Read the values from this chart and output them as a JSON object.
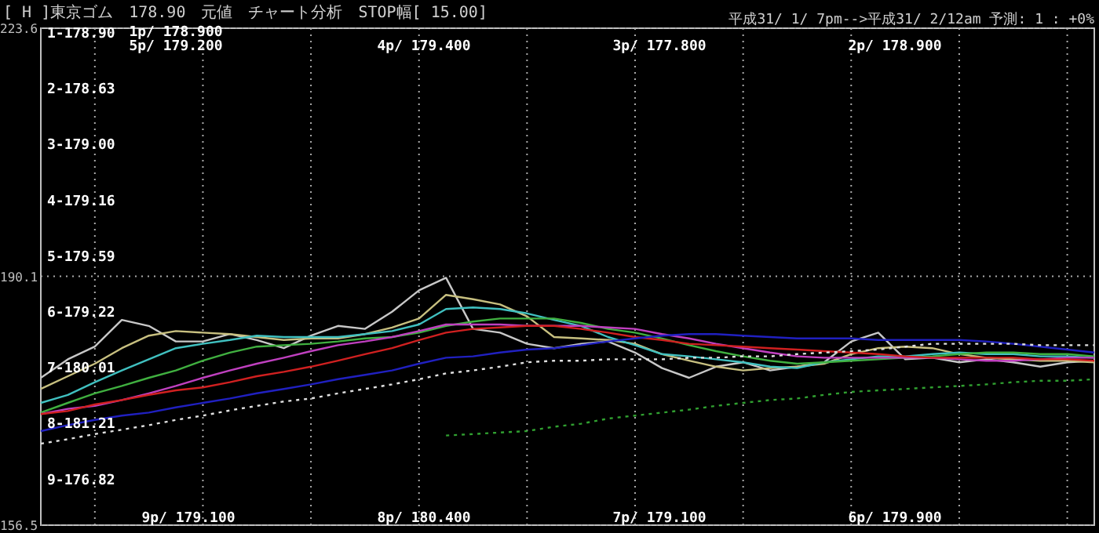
{
  "chart_data": {
    "type": "line",
    "title": "[ H ]東京ゴム　178.90　元値　チャート分析　STOP幅[ 15.00]",
    "subtitle": "平成31/ 1/ 7pm-->平成31/ 2/12am 予測: 1 : +0%",
    "categories": [
      null,
      null,
      null,
      null,
      null,
      null,
      null,
      null,
      null,
      null,
      null,
      null,
      null,
      null,
      null,
      null,
      null,
      null,
      null,
      null,
      null,
      null,
      null,
      null,
      null,
      null,
      null,
      null,
      null,
      null,
      null,
      null,
      null,
      null,
      null,
      null,
      null,
      null,
      null,
      null
    ],
    "ylim": [
      156.5,
      223.6
    ],
    "yticks": [
      156.5,
      190.1,
      223.6
    ],
    "grid": true,
    "marker": "none",
    "series": [
      {
        "color": "#c8c8c8",
        "values": [
          176.4,
          178.9,
          180.6,
          184.2,
          183.4,
          181.3,
          181.3,
          182.3,
          181.5,
          180.4,
          182.1,
          183.4,
          183.0,
          185.3,
          188.2,
          189.9,
          183.0,
          182.5,
          181.0,
          180.4,
          181.0,
          181.3,
          179.8,
          177.7,
          176.4,
          177.9,
          178.5,
          177.4,
          177.9,
          178.5,
          181.3,
          182.5,
          178.9,
          179.1,
          178.5,
          178.9,
          178.5,
          177.9,
          178.5,
          178.7
        ]
      },
      {
        "color": "#c8c080",
        "values": [
          174.9,
          176.6,
          178.3,
          180.4,
          182.1,
          182.7,
          182.5,
          182.3,
          181.9,
          181.5,
          181.7,
          181.7,
          182.3,
          183.2,
          184.4,
          187.6,
          187.0,
          186.3,
          184.7,
          181.9,
          181.7,
          181.5,
          181.0,
          179.6,
          178.7,
          177.9,
          177.4,
          177.7,
          177.9,
          178.3,
          179.6,
          180.4,
          180.6,
          180.4,
          179.6,
          179.1,
          178.9,
          178.7,
          178.7,
          178.5
        ]
      },
      {
        "color": "#40c0c0",
        "values": [
          173.0,
          174.1,
          175.8,
          177.4,
          178.9,
          180.4,
          181.0,
          181.5,
          182.1,
          181.9,
          181.9,
          181.9,
          182.3,
          182.7,
          183.6,
          185.7,
          185.9,
          185.7,
          185.1,
          184.2,
          183.4,
          181.9,
          180.8,
          179.6,
          179.3,
          178.9,
          178.5,
          177.9,
          177.7,
          178.5,
          178.9,
          179.3,
          179.3,
          179.6,
          179.8,
          179.6,
          179.6,
          179.3,
          179.3,
          179.1
        ]
      },
      {
        "color": "#40b040",
        "values": [
          171.7,
          173.0,
          174.3,
          175.3,
          176.4,
          177.4,
          178.7,
          179.8,
          180.6,
          180.8,
          181.0,
          181.3,
          181.7,
          181.9,
          182.5,
          183.4,
          184.0,
          184.4,
          184.4,
          184.4,
          183.8,
          183.0,
          182.5,
          181.7,
          180.8,
          180.0,
          179.3,
          178.7,
          178.3,
          178.5,
          178.7,
          178.9,
          179.1,
          179.3,
          179.6,
          179.8,
          179.8,
          179.6,
          179.6,
          179.3
        ]
      },
      {
        "color": "#c040c0",
        "values": [
          171.5,
          172.2,
          172.6,
          173.4,
          174.3,
          175.3,
          176.4,
          177.4,
          178.3,
          179.1,
          180.0,
          180.8,
          181.3,
          181.9,
          182.7,
          183.6,
          183.6,
          183.6,
          183.4,
          183.4,
          183.4,
          183.2,
          183.0,
          182.3,
          181.7,
          181.0,
          180.4,
          179.8,
          179.3,
          179.1,
          179.1,
          179.1,
          179.1,
          179.1,
          178.9,
          178.7,
          178.7,
          178.9,
          179.1,
          179.1
        ]
      },
      {
        "color": "#d02020",
        "values": [
          171.5,
          171.9,
          172.8,
          173.4,
          174.1,
          174.7,
          175.1,
          175.8,
          176.6,
          177.2,
          177.9,
          178.7,
          179.6,
          180.4,
          181.5,
          182.5,
          183.0,
          183.2,
          183.4,
          183.4,
          183.0,
          182.5,
          181.9,
          181.5,
          181.0,
          180.8,
          180.6,
          180.4,
          180.2,
          180.0,
          179.8,
          179.6,
          179.3,
          179.1,
          179.1,
          179.1,
          179.1,
          178.9,
          178.9,
          178.7
        ]
      },
      {
        "color": "#2020c0",
        "values": [
          169.2,
          170.0,
          170.7,
          171.3,
          171.7,
          172.4,
          173.0,
          173.6,
          174.3,
          174.9,
          175.5,
          176.2,
          176.8,
          177.4,
          178.3,
          179.1,
          179.3,
          179.8,
          180.2,
          180.4,
          180.8,
          181.3,
          181.7,
          182.1,
          182.3,
          182.3,
          182.1,
          181.9,
          181.7,
          181.7,
          181.7,
          181.5,
          181.5,
          181.5,
          181.5,
          181.3,
          181.0,
          180.6,
          180.2,
          179.8
        ]
      },
      {
        "color": "#e0e0e0",
        "line_style": "dotted",
        "values": [
          167.5,
          168.1,
          168.8,
          169.4,
          170.0,
          170.7,
          171.3,
          172.0,
          172.6,
          173.2,
          173.6,
          174.3,
          174.9,
          175.5,
          176.2,
          177.0,
          177.4,
          177.9,
          178.5,
          178.7,
          178.7,
          178.9,
          178.9,
          178.9,
          179.1,
          179.1,
          179.3,
          179.3,
          179.6,
          179.8,
          180.0,
          180.2,
          180.6,
          181.0,
          181.0,
          181.0,
          181.0,
          180.8,
          180.8,
          180.8
        ]
      },
      {
        "color": "#30a030",
        "line_style": "dotted",
        "values": [
          null,
          null,
          null,
          null,
          null,
          null,
          null,
          null,
          null,
          null,
          null,
          null,
          null,
          null,
          null,
          168.6,
          168.8,
          169.0,
          169.2,
          169.8,
          170.2,
          170.9,
          171.3,
          171.7,
          172.1,
          172.6,
          173.0,
          173.4,
          173.6,
          174.1,
          174.5,
          174.7,
          174.9,
          175.1,
          175.3,
          175.5,
          175.8,
          176.0,
          176.0,
          176.2
        ]
      }
    ],
    "annotations": [
      "1-178.90",
      "2-178.63",
      "3-179.00",
      "4-179.16",
      "5-179.59",
      "6-179.22",
      "7-180.01",
      "8-181.21",
      "9-176.82",
      "1p/ 178.900",
      "5p/ 179.200",
      "4p/ 179.400",
      "3p/ 177.800",
      "2p/ 178.900",
      "9p/ 179.100",
      "8p/ 180.400",
      "7p/ 179.100",
      "6p/ 179.900"
    ]
  }
}
